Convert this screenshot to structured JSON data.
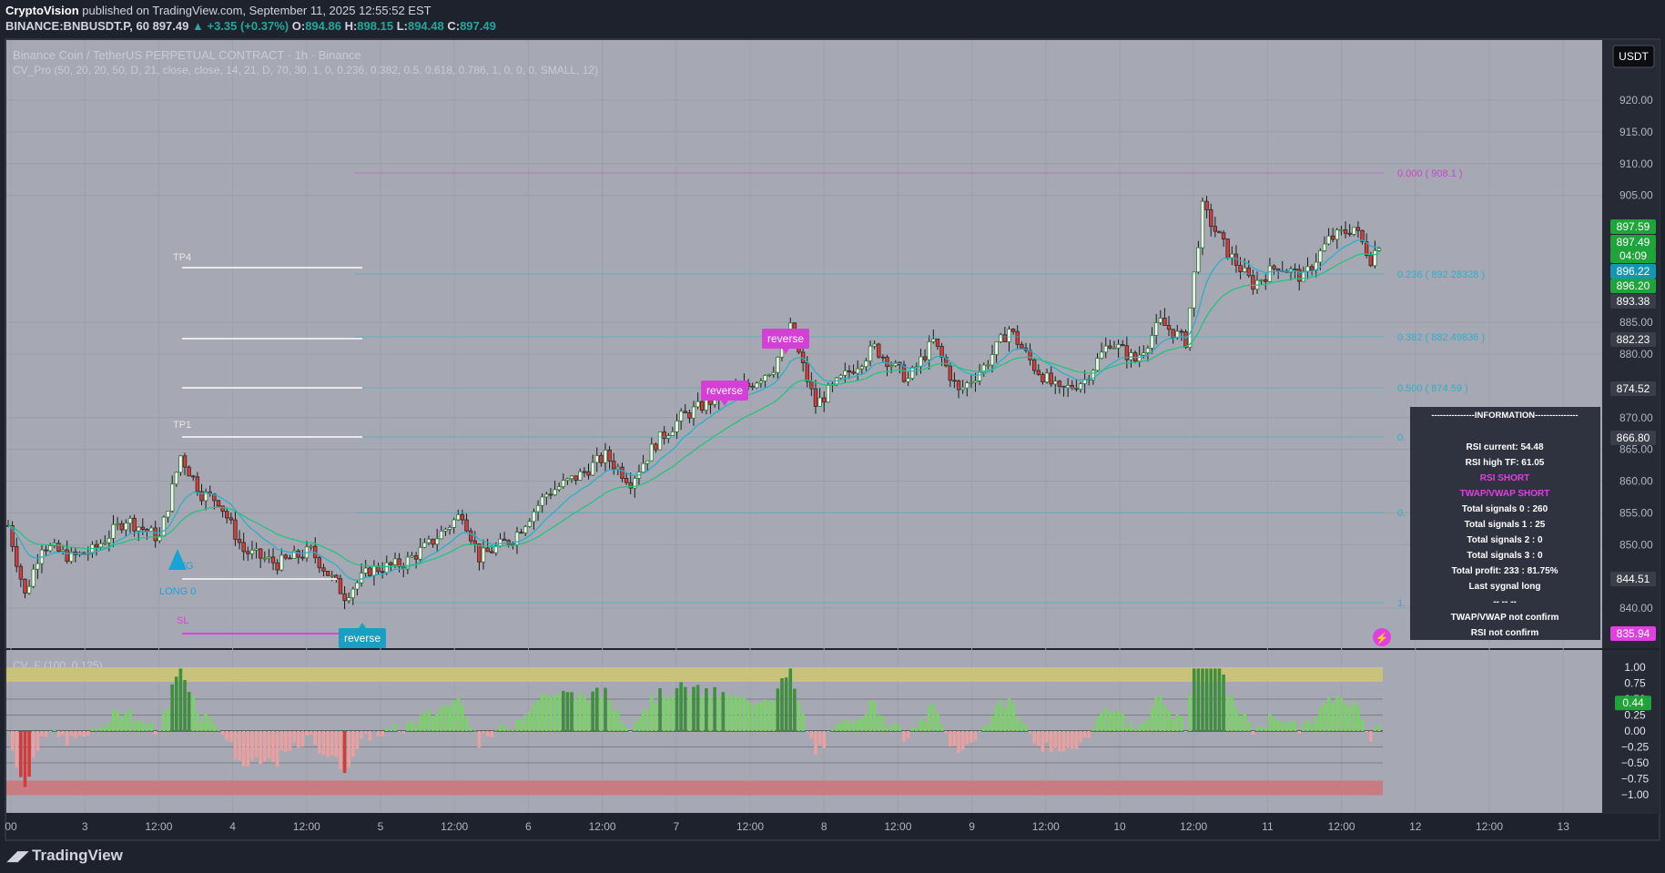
{
  "publisher": {
    "name": "CryptoVision",
    "text": "published on TradingView.com, September 11, 2025 12:55:52 EST"
  },
  "symbol_line": {
    "symbol": "BINANCE:BNBUSDT.P, 60",
    "last": "897.49",
    "change": "+3.35 (+0.37%)",
    "o_label": "O:",
    "o": "894.86",
    "h_label": "H:",
    "h": "898.15",
    "l_label": "L:",
    "l": "894.48",
    "c_label": "C:",
    "c": "897.49"
  },
  "pane": {
    "title": "Binance Coin / TetherUS PERPETUAL CONTRACT · 1h · Binance",
    "indicator": "CV_Pro (50, 20, 20, 50, D, 21, close, close, 14, 21, D, 70, 30, 1, 0, 0.236, 0.382, 0.5, 0.618, 0.786, 1, 0, 0, 0, SMALL, 12)",
    "currency": "USDT",
    "sub_indicator": "CV_F (100, 0.125)"
  },
  "price_axis": {
    "ticks": [
      "920.00",
      "915.00",
      "910.00",
      "905.00",
      "885.00",
      "880.00",
      "870.00",
      "865.00",
      "860.00",
      "855.00",
      "850.00",
      "840.00"
    ],
    "badges": [
      {
        "label": "897.59",
        "color": "#1fa33a"
      },
      {
        "label": "897.49",
        "color": "#1fa33a"
      },
      {
        "label": "04:09",
        "color": "#1fa33a"
      },
      {
        "label": "896.22",
        "color": "#1597b3"
      },
      {
        "label": "896.20",
        "color": "#1fa33a"
      },
      {
        "label": "893.38",
        "color": "#3a3e48"
      },
      {
        "label": "882.23",
        "color": "#3a3e48"
      },
      {
        "label": "874.52",
        "color": "#3a3e48"
      },
      {
        "label": "866.80",
        "color": "#3a3e48"
      },
      {
        "label": "844.51",
        "color": "#3a3e48"
      },
      {
        "label": "835.94",
        "color": "#e040e0"
      }
    ]
  },
  "osc_axis": {
    "ticks": [
      "1.00",
      "0.75",
      "0.50",
      "0.25",
      "0.00",
      "−0.25",
      "−0.50",
      "−0.75",
      "−1.00"
    ],
    "current": "0.44"
  },
  "time_axis": [
    "00",
    "3",
    "12:00",
    "4",
    "12:00",
    "5",
    "12:00",
    "6",
    "12:00",
    "7",
    "12:00",
    "8",
    "12:00",
    "9",
    "12:00",
    "10",
    "12:00",
    "11",
    "12:00",
    "12",
    "12:00",
    "13"
  ],
  "fib_levels": [
    {
      "label": "0.000 ( 908.1 )",
      "color": "#cc44cc"
    },
    {
      "label": "0.236 ( 892.28328 )",
      "color": "#2bb0c8"
    },
    {
      "label": "0.382 ( 882.49836 )",
      "color": "#2bb0c8"
    },
    {
      "label": "0.500 ( 874.59 )",
      "color": "#2bb0c8"
    },
    {
      "label": "0.",
      "color": "#2bb0c8"
    },
    {
      "label": "0.",
      "color": "#2bb0c8"
    },
    {
      "label": "1.",
      "color": "#2bb0c8"
    }
  ],
  "trade_labels": {
    "tp4": "TP4",
    "tp1": "TP1",
    "avg": "AVG",
    "long": "LONG 0",
    "sl": "SL"
  },
  "signals": [
    {
      "label": "reverse",
      "color": "#d63fd6"
    },
    {
      "label": "reverse",
      "color": "#d63fd6"
    },
    {
      "label": "reverse",
      "color": "#1a9fc4"
    }
  ],
  "info_panel": {
    "title": "---------------INFORMATION---------------",
    "lines": [
      {
        "text": "RSI current: 54.48",
        "color": "#ffffff"
      },
      {
        "text": "RSI high TF: 61.05",
        "color": "#ffffff"
      },
      {
        "text": "RSI SHORT",
        "color": "#e040e0"
      },
      {
        "text": "TWAP/VWAP SHORT",
        "color": "#e040e0"
      },
      {
        "text": "Total signals 0 : 260",
        "color": "#ffffff"
      },
      {
        "text": "Total signals 1 : 25",
        "color": "#ffffff"
      },
      {
        "text": "Total signals 2 : 0",
        "color": "#ffffff"
      },
      {
        "text": "Total signals 3 : 0",
        "color": "#ffffff"
      },
      {
        "text": "Total profit: 233 : 81.75%",
        "color": "#ffffff"
      },
      {
        "text": "Last sygnal long",
        "color": "#ffffff"
      },
      {
        "text": "-- -- --",
        "color": "#ffffff"
      },
      {
        "text": "TWAP/VWAP not confirm",
        "color": "#ffffff"
      },
      {
        "text": "RSI not confirm",
        "color": "#ffffff"
      }
    ]
  },
  "footer": {
    "brand": "TradingView",
    "logo_icon": "tradingview-logo-icon"
  },
  "colors": {
    "up": "#1f9e3a",
    "down": "#d93a3a",
    "ema_fast": "#2bb0c8",
    "ema_slow": "#26c281",
    "bg_pane": "#a6a9b3"
  },
  "chart_data": {
    "type": "candlestick",
    "title": "Binance Coin / TetherUS PERPETUAL CONTRACT · 1h · Binance",
    "ylim": [
      835,
      923
    ],
    "x_ticks": [
      "00",
      "3",
      "12:00",
      "4",
      "12:00",
      "5",
      "12:00",
      "6",
      "12:00",
      "7",
      "12:00",
      "8",
      "12:00",
      "9",
      "12:00",
      "10",
      "12:00",
      "11",
      "12:00",
      "12",
      "12:00",
      "13"
    ],
    "keypoints": [
      {
        "i": 0,
        "v": 853
      },
      {
        "i": 4,
        "v": 842
      },
      {
        "i": 8,
        "v": 850
      },
      {
        "i": 15,
        "v": 848
      },
      {
        "i": 20,
        "v": 849
      },
      {
        "i": 28,
        "v": 854
      },
      {
        "i": 36,
        "v": 851
      },
      {
        "i": 41,
        "v": 864
      },
      {
        "i": 46,
        "v": 858
      },
      {
        "i": 50,
        "v": 857
      },
      {
        "i": 56,
        "v": 849
      },
      {
        "i": 64,
        "v": 847
      },
      {
        "i": 72,
        "v": 849
      },
      {
        "i": 80,
        "v": 842
      },
      {
        "i": 86,
        "v": 846
      },
      {
        "i": 94,
        "v": 847
      },
      {
        "i": 100,
        "v": 850
      },
      {
        "i": 108,
        "v": 855
      },
      {
        "i": 112,
        "v": 848
      },
      {
        "i": 120,
        "v": 851
      },
      {
        "i": 128,
        "v": 858
      },
      {
        "i": 136,
        "v": 861
      },
      {
        "i": 142,
        "v": 864
      },
      {
        "i": 148,
        "v": 860
      },
      {
        "i": 154,
        "v": 866
      },
      {
        "i": 160,
        "v": 870
      },
      {
        "i": 168,
        "v": 873
      },
      {
        "i": 176,
        "v": 875
      },
      {
        "i": 182,
        "v": 878
      },
      {
        "i": 186,
        "v": 884
      },
      {
        "i": 192,
        "v": 872
      },
      {
        "i": 198,
        "v": 876
      },
      {
        "i": 206,
        "v": 881
      },
      {
        "i": 214,
        "v": 876
      },
      {
        "i": 220,
        "v": 882
      },
      {
        "i": 226,
        "v": 874
      },
      {
        "i": 232,
        "v": 878
      },
      {
        "i": 238,
        "v": 884
      },
      {
        "i": 244,
        "v": 878
      },
      {
        "i": 250,
        "v": 874
      },
      {
        "i": 256,
        "v": 876
      },
      {
        "i": 262,
        "v": 882
      },
      {
        "i": 268,
        "v": 879
      },
      {
        "i": 274,
        "v": 885
      },
      {
        "i": 280,
        "v": 882
      },
      {
        "i": 284,
        "v": 903
      },
      {
        "i": 290,
        "v": 896
      },
      {
        "i": 296,
        "v": 891
      },
      {
        "i": 302,
        "v": 894
      },
      {
        "i": 308,
        "v": 892
      },
      {
        "i": 314,
        "v": 898
      },
      {
        "i": 320,
        "v": 900
      },
      {
        "i": 324,
        "v": 895
      },
      {
        "i": 326,
        "v": 897.5
      }
    ],
    "candle_count": 327,
    "osc_series": {
      "name": "CV_F (100, 0.125)",
      "current": 0.44,
      "range": [
        -1,
        1
      ]
    }
  }
}
